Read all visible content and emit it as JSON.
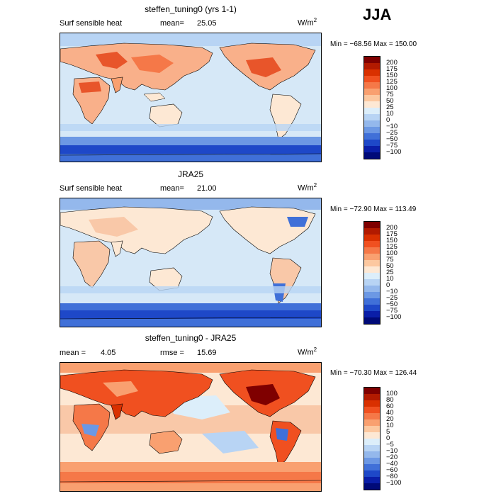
{
  "season": "JJA",
  "panels": [
    {
      "title": "steffen_tuning0 (yrs 1-1)",
      "left_label": "Surf sensible heat",
      "stat1_label": "mean=",
      "stat1_value": "25.05",
      "stat2_label": "",
      "stat2_value": "",
      "units": "W/m",
      "units_exp": "2",
      "minmax": "Min = −68.56  Max = 150.00",
      "colorbar": {
        "labels": [
          "200",
          "175",
          "150",
          "125",
          "100",
          "75",
          "50",
          "25",
          "10",
          "0",
          "−10",
          "−25",
          "−50",
          "−75",
          "−100"
        ],
        "colors": [
          "#7f0000",
          "#b21a00",
          "#d93000",
          "#f05020",
          "#f57848",
          "#f9a070",
          "#fcc8a0",
          "#fde8d4",
          "#dceefa",
          "#b8d4f4",
          "#94b8ec",
          "#6c98e4",
          "#4070d8",
          "#1e48c8",
          "#0a1ea8",
          "#000a78"
        ]
      }
    },
    {
      "title": "JRA25",
      "left_label": "Surf sensible heat",
      "stat1_label": "mean=",
      "stat1_value": "21.00",
      "stat2_label": "",
      "stat2_value": "",
      "units": "W/m",
      "units_exp": "2",
      "minmax": "Min = −72.90  Max = 113.49",
      "colorbar": {
        "labels": [
          "200",
          "175",
          "150",
          "125",
          "100",
          "75",
          "50",
          "25",
          "10",
          "0",
          "−10",
          "−25",
          "−50",
          "−75",
          "−100"
        ],
        "colors": [
          "#7f0000",
          "#b21a00",
          "#d93000",
          "#f05020",
          "#f57848",
          "#f9a070",
          "#fcc8a0",
          "#fde8d4",
          "#dceefa",
          "#b8d4f4",
          "#94b8ec",
          "#6c98e4",
          "#4070d8",
          "#1e48c8",
          "#0a1ea8",
          "#000a78"
        ]
      }
    },
    {
      "title": "steffen_tuning0 - JRA25",
      "left_label": "",
      "stat1_label": "mean =",
      "stat1_value": "4.05",
      "stat2_label": "rmse =",
      "stat2_value": "15.69",
      "units": "W/m",
      "units_exp": "2",
      "minmax": "Min = −70.30  Max = 126.44",
      "colorbar": {
        "labels": [
          "100",
          "80",
          "60",
          "40",
          "20",
          "10",
          "5",
          "0",
          "−5",
          "−10",
          "−20",
          "−40",
          "−60",
          "−80",
          "−100"
        ],
        "colors": [
          "#7f0000",
          "#b21a00",
          "#d93000",
          "#f05020",
          "#f57848",
          "#f9a070",
          "#fcc8a0",
          "#fde8d4",
          "#dceefa",
          "#b8d4f4",
          "#94b8ec",
          "#6c98e4",
          "#4070d8",
          "#1e48c8",
          "#0a1ea8",
          "#000a78"
        ]
      }
    }
  ],
  "map_colors": {
    "ocean": "#d6e8f7",
    "land_warm": "#f9b08a",
    "land_hot": "#e8552a",
    "land_very_hot": "#b21a00",
    "cool": "#94b8ec",
    "cold": "#4070d8",
    "very_cold": "#0a1ea8",
    "pale": "#fde8d4",
    "coast": "#000000"
  }
}
